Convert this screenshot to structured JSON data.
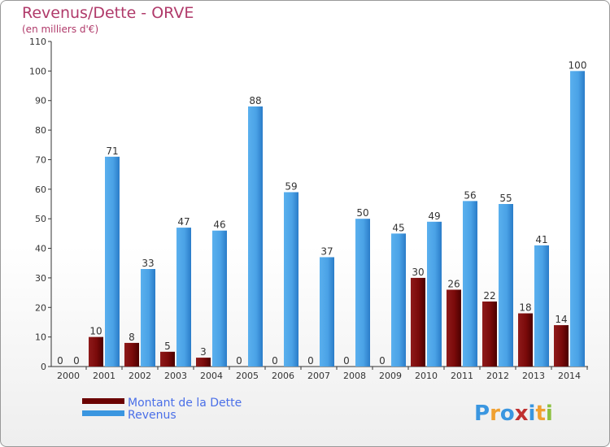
{
  "chart_data": {
    "type": "bar",
    "title": "Revenus/Dette - ORVE",
    "subtitle": "(en milliers d'€)",
    "categories": [
      "2000",
      "2001",
      "2002",
      "2003",
      "2004",
      "2005",
      "2006",
      "2007",
      "2008",
      "2009",
      "2010",
      "2011",
      "2012",
      "2013",
      "2014"
    ],
    "series": [
      {
        "name": "Montant de la Dette",
        "color": "#7a0a0a",
        "values": [
          0,
          10,
          8,
          5,
          3,
          0,
          0,
          0,
          0,
          0,
          30,
          26,
          22,
          18,
          14
        ]
      },
      {
        "name": "Revenus",
        "color": "#3a96e0",
        "values": [
          0,
          71,
          33,
          47,
          46,
          88,
          59,
          37,
          50,
          45,
          49,
          56,
          55,
          41,
          100
        ]
      }
    ],
    "ylim": [
      0,
      110
    ],
    "yticks": [
      0,
      10,
      20,
      30,
      40,
      50,
      60,
      70,
      80,
      90,
      100,
      110
    ],
    "grid": false,
    "legend_position": "bottom-left"
  },
  "logo": {
    "letters": [
      {
        "ch": "P",
        "color": "#3a96e0"
      },
      {
        "ch": "r",
        "color": "#f0a030"
      },
      {
        "ch": "o",
        "color": "#3a96e0"
      },
      {
        "ch": "x",
        "color": "#c03030"
      },
      {
        "ch": "i",
        "color": "#3a96e0"
      },
      {
        "ch": "t",
        "color": "#f0a030"
      },
      {
        "ch": "i",
        "color": "#8cc040"
      }
    ]
  }
}
